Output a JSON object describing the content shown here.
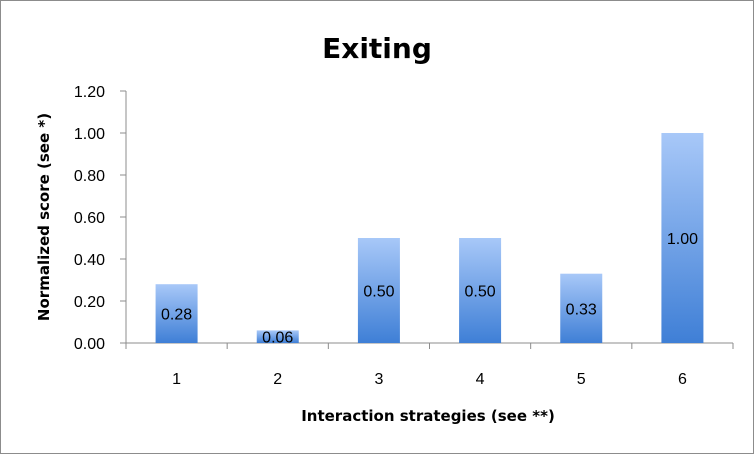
{
  "chart_data": {
    "type": "bar",
    "title": "Exiting",
    "xlabel": "Interaction strategies (see **)",
    "ylabel": "Normalized score (see *)",
    "categories": [
      "1",
      "2",
      "3",
      "4",
      "5",
      "6"
    ],
    "values": [
      0.28,
      0.06,
      0.5,
      0.5,
      0.33,
      1.0
    ],
    "data_labels": [
      "0.28",
      "0.06",
      "0.50",
      "0.50",
      "0.33",
      "1.00"
    ],
    "yticks": [
      "0.00",
      "0.20",
      "0.40",
      "0.60",
      "0.80",
      "1.00",
      "1.20"
    ],
    "ylim": [
      0,
      1.2
    ],
    "grid": false,
    "legend": "none",
    "bar_gradient": [
      "#a8c8f8",
      "#3f7fd6"
    ]
  }
}
